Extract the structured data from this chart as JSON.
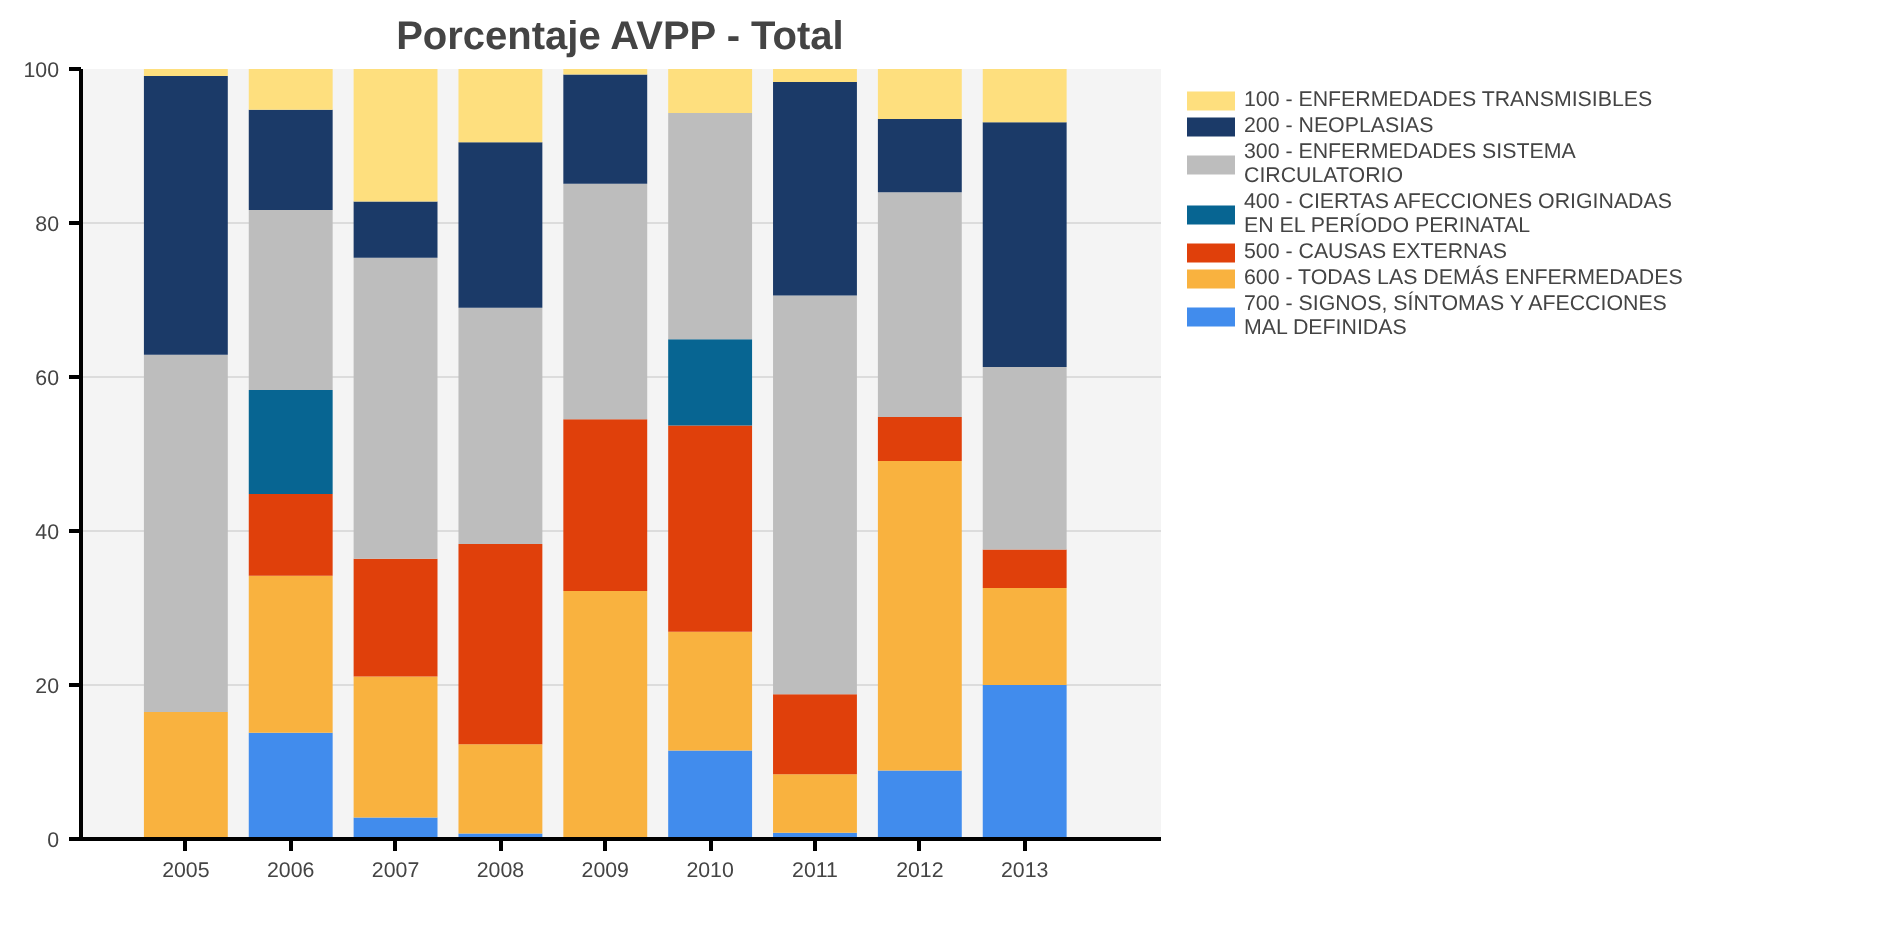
{
  "chart_data": {
    "type": "bar",
    "title": "Porcentaje AVPP - Total",
    "stacked": true,
    "categories": [
      "2005",
      "2006",
      "2007",
      "2008",
      "2009",
      "2010",
      "2011",
      "2012",
      "2013"
    ],
    "series": [
      {
        "name": "700 - SIGNOS, SÍNTOMAS Y AFECCIONES MAL DEFINIDAS",
        "color": "#418ced",
        "values": [
          0,
          13.8,
          2.8,
          0.7,
          0,
          11.5,
          0.8,
          8.9,
          20.0
        ]
      },
      {
        "name": "600 - TODAS LAS DEMÁS ENFERMEDADES",
        "color": "#f9b23f",
        "values": [
          16.5,
          20.4,
          18.3,
          11.6,
          32.2,
          15.4,
          7.6,
          40.2,
          12.6
        ]
      },
      {
        "name": "500 - CAUSAS EXTERNAS",
        "color": "#e0400b",
        "values": [
          0,
          10.6,
          15.3,
          26.0,
          22.3,
          26.8,
          10.4,
          5.7,
          5.0
        ]
      },
      {
        "name": "400 - CIERTAS AFECCIONES ORIGINADAS EN EL PERÍODO PERINATAL",
        "color": "#076592",
        "values": [
          0,
          13.5,
          0,
          0,
          0,
          11.2,
          0,
          0,
          0
        ]
      },
      {
        "name": "300 - ENFERMEDADES SISTEMA CIRCULATORIO",
        "color": "#bdbdbd",
        "values": [
          46.4,
          23.4,
          39.1,
          30.7,
          30.6,
          29.4,
          51.8,
          29.2,
          23.7
        ]
      },
      {
        "name": "200 - NEOPLASIAS",
        "color": "#1b3a68",
        "values": [
          36.2,
          13.0,
          7.3,
          21.5,
          14.2,
          0,
          27.7,
          9.5,
          31.8
        ]
      },
      {
        "name": "100 - ENFERMEDADES TRANSMISIBLES",
        "color": "#fedf7e",
        "values": [
          0.9,
          5.3,
          17.2,
          9.5,
          0.7,
          5.7,
          1.7,
          6.5,
          6.9
        ]
      }
    ],
    "ylim": [
      0,
      100
    ],
    "yticks": [
      0,
      20,
      40,
      60,
      80,
      100
    ],
    "grid": "y",
    "legend": "top right"
  }
}
